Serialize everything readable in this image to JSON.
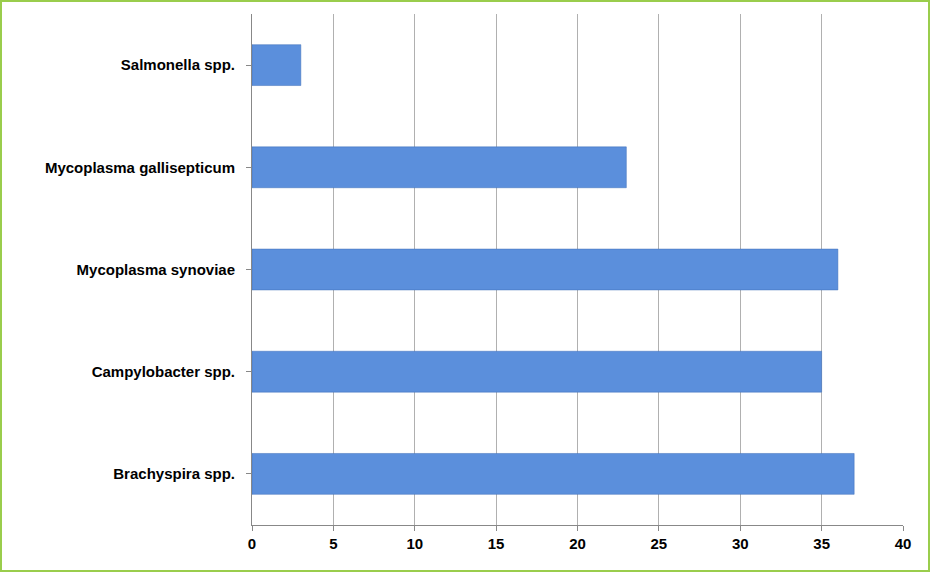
{
  "chart_data": {
    "type": "bar",
    "orientation": "horizontal",
    "categories": [
      "Salmonella spp.",
      "Mycoplasma gallisepticum",
      "Mycoplasma synoviae",
      "Campylobacter spp.",
      "Brachyspira spp."
    ],
    "values": [
      3,
      23,
      36,
      35,
      37
    ],
    "color": "#5b8fdc",
    "xlim": [
      0,
      40
    ],
    "xticks": [
      0,
      5,
      10,
      15,
      20,
      25,
      30,
      35,
      40
    ],
    "grid": true
  }
}
